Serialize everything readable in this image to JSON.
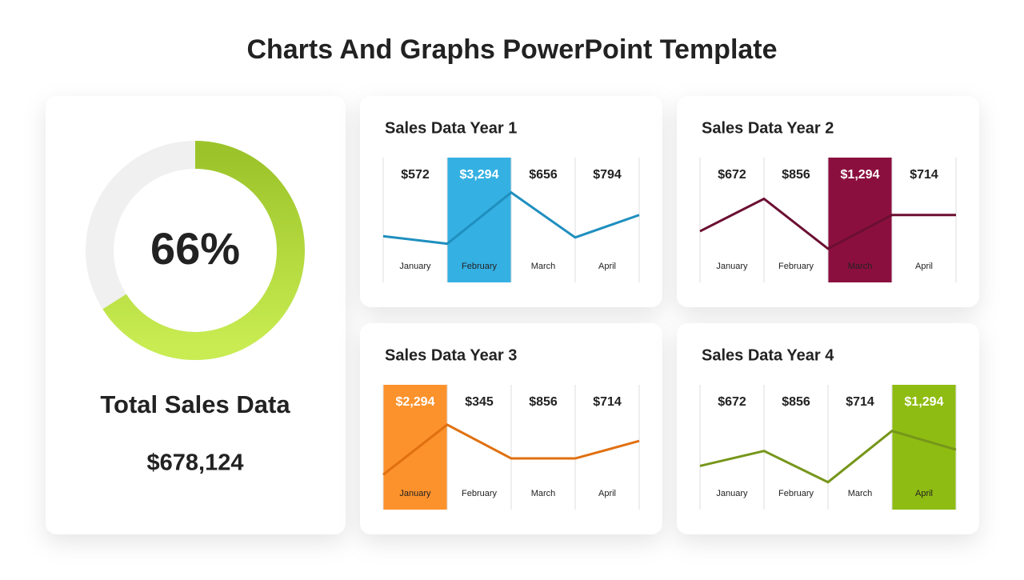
{
  "title": "Charts And Graphs PowerPoint Template",
  "chart_data": [
    {
      "type": "donut",
      "values": [
        66
      ],
      "value_labels": [
        "66%"
      ],
      "color": "#b5dc38",
      "track_color": "#f0f0f0",
      "caption": "Total Sales Data",
      "total": "$678,124"
    },
    {
      "type": "line",
      "title": "Sales Data Year 1",
      "categories": [
        "January",
        "February",
        "March",
        "April"
      ],
      "values": [
        572,
        3294,
        656,
        794
      ],
      "value_labels": [
        "$572",
        "$3,294",
        "$656",
        "$794"
      ],
      "highlight": 1,
      "highlight_color": "#35b0e2",
      "trend": [
        37,
        31,
        72,
        36,
        54
      ],
      "ylim": [
        0,
        100
      ],
      "color": "#1f8fbf"
    },
    {
      "type": "line",
      "title": "Sales Data Year 2",
      "categories": [
        "January",
        "February",
        "March",
        "April"
      ],
      "values": [
        672,
        856,
        1294,
        714
      ],
      "value_labels": [
        "$672",
        "$856",
        "$1,294",
        "$714"
      ],
      "highlight": 2,
      "highlight_color": "#8b0f3e",
      "trend": [
        41,
        67,
        27,
        54,
        54
      ],
      "ylim": [
        0,
        100
      ],
      "color": "#6b0f32"
    },
    {
      "type": "line",
      "title": "Sales Data Year 3",
      "categories": [
        "January",
        "February",
        "March",
        "April"
      ],
      "values": [
        2294,
        345,
        856,
        714
      ],
      "value_labels": [
        "$2,294",
        "$345",
        "$856",
        "$714"
      ],
      "highlight": 0,
      "highlight_color": "#fc922c",
      "trend": [
        28,
        68,
        41,
        41,
        55
      ],
      "ylim": [
        0,
        100
      ],
      "color": "#e07010"
    },
    {
      "type": "line",
      "title": "Sales Data Year 4",
      "categories": [
        "January",
        "February",
        "March",
        "April"
      ],
      "values": [
        672,
        856,
        714,
        1294
      ],
      "value_labels": [
        "$672",
        "$856",
        "$714",
        "$1,294"
      ],
      "highlight": 3,
      "highlight_color": "#8fbc12",
      "trend": [
        35,
        47,
        22,
        63,
        48
      ],
      "ylim": [
        0,
        100
      ],
      "color": "#76961a"
    }
  ]
}
